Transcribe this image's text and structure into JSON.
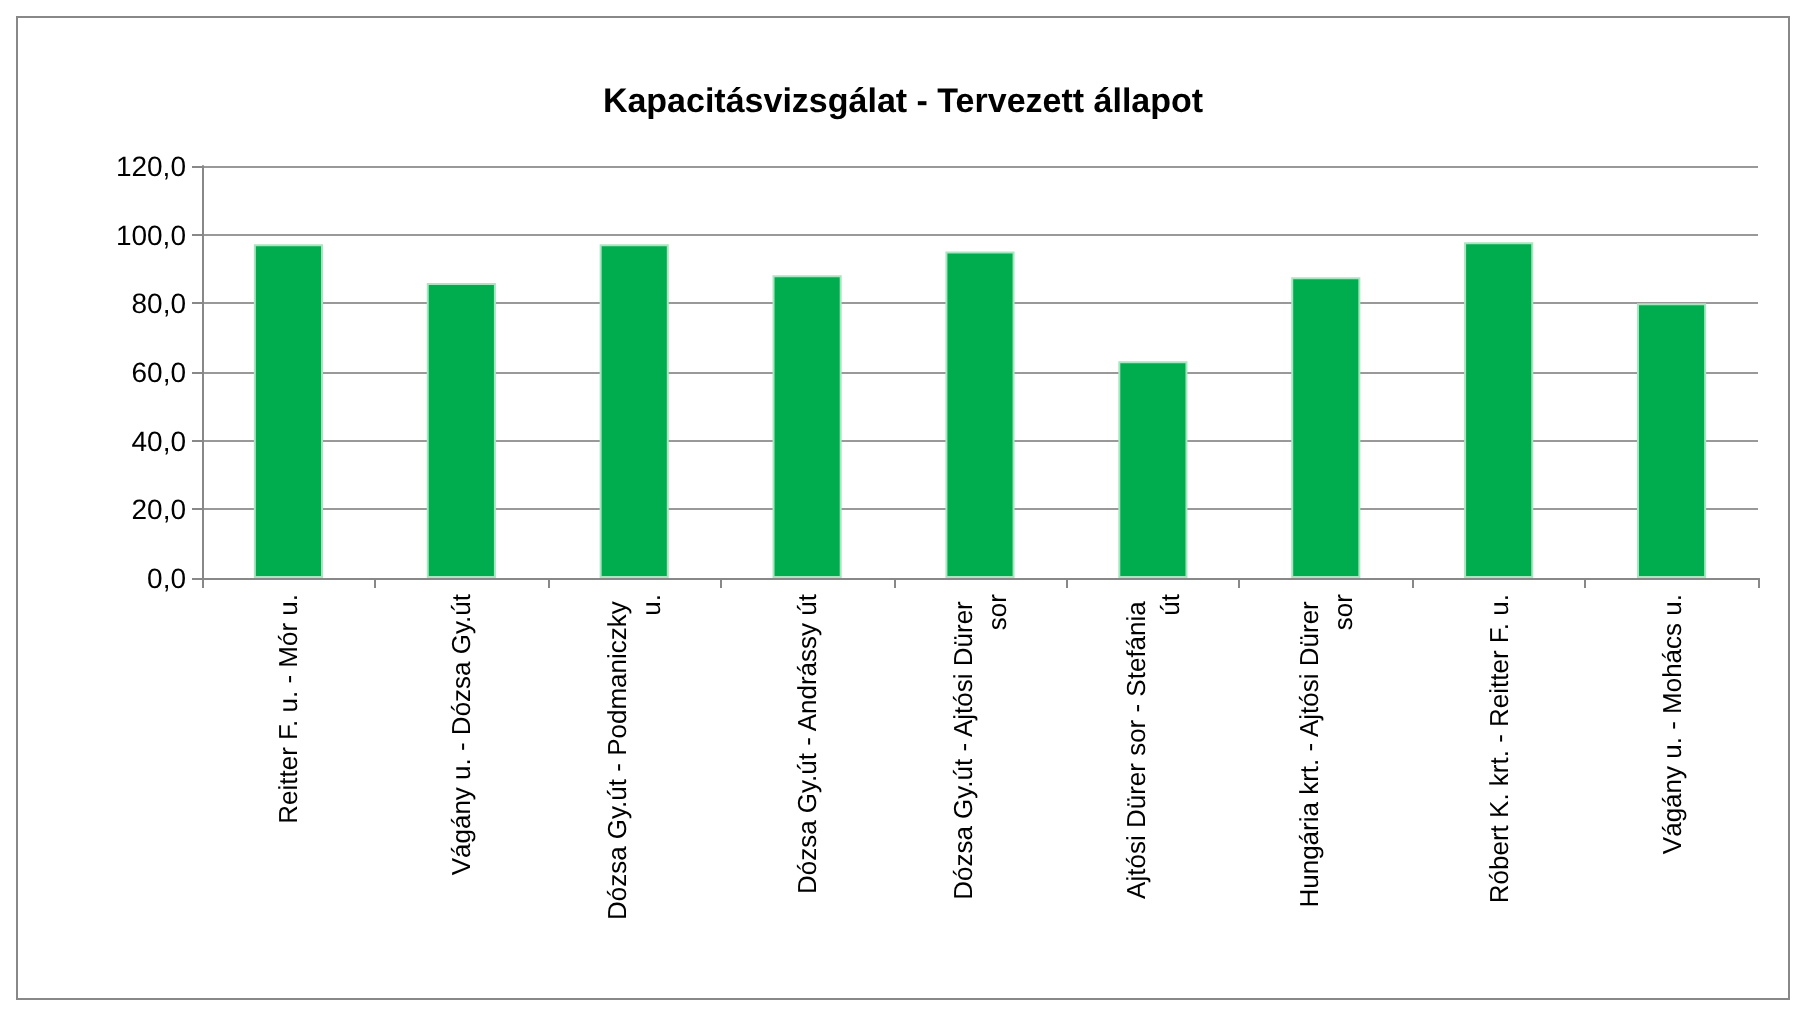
{
  "chart_data": {
    "type": "bar",
    "title": "Kapacitásvizsgálat - Tervezett állapot",
    "categories": [
      "Reitter F. u. - Mór u.",
      "Vágány u. - Dózsa Gy.út",
      "Dózsa Gy.út - Podmaniczky u.",
      "Dózsa Gy.út - Andrássy út",
      "Dózsa Gy.út - Ajtósi Dürer sor",
      "Ajtósi Dürer sor - Stefánia út",
      "Hungária krt. - Ajtósi Dürer sor",
      "Róbert K. krt. - Reitter F. u.",
      "Vágány u. - Mohács u."
    ],
    "values": [
      97.2,
      85.9,
      97.2,
      88.2,
      95.1,
      63.1,
      87.6,
      97.8,
      80.0
    ],
    "color": "#00ad4e",
    "ylim": [
      0,
      120
    ],
    "yticks": [
      {
        "value": 0,
        "label": "0,0"
      },
      {
        "value": 20,
        "label": "20,0"
      },
      {
        "value": 40,
        "label": "40,0"
      },
      {
        "value": 60,
        "label": "60,0"
      },
      {
        "value": 80,
        "label": "80,0"
      },
      {
        "value": 100,
        "label": "100,0"
      },
      {
        "value": 120,
        "label": "120,0"
      }
    ],
    "grid": "y"
  }
}
